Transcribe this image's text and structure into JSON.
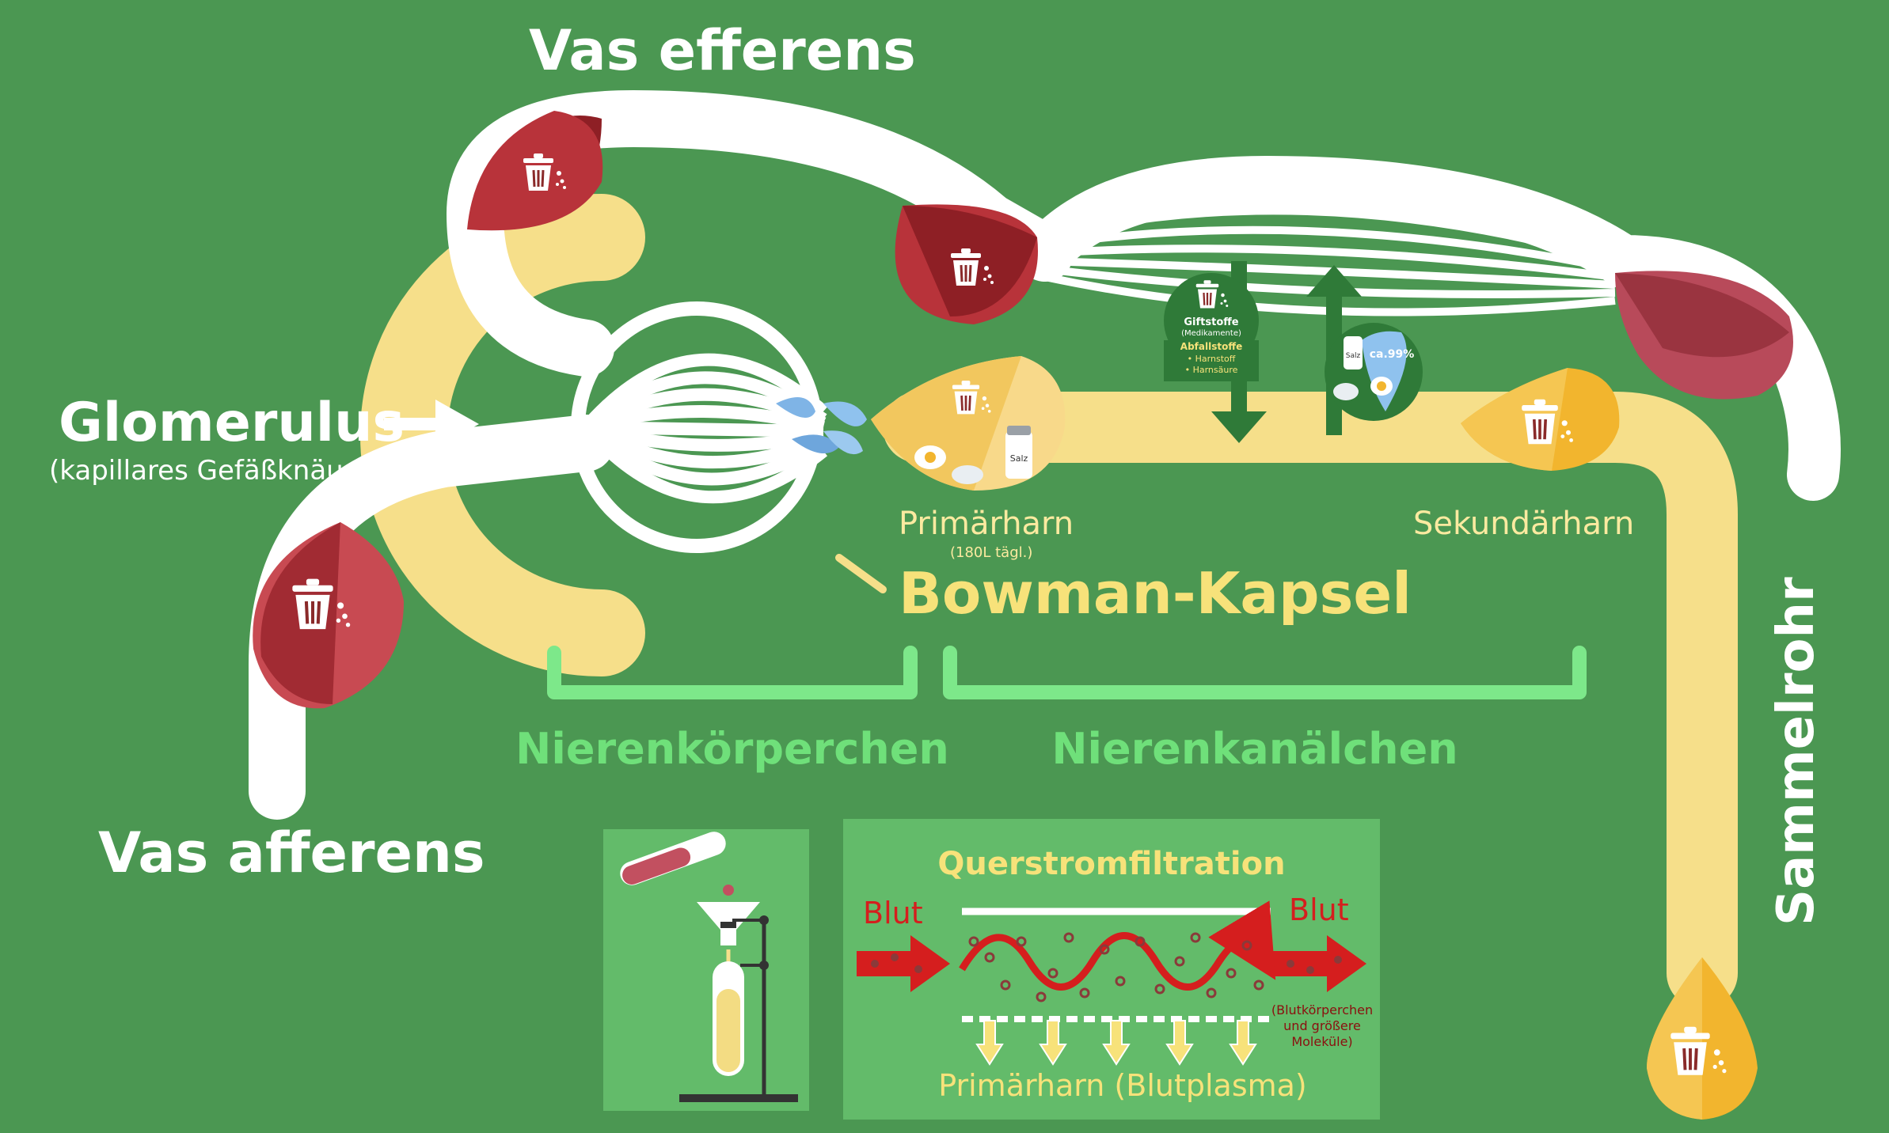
{
  "labels": {
    "vas_efferens": "Vas efferens",
    "glomerulus": "Glomerulus",
    "glomerulus_sub": "(kapillares Gefäßknäuel)",
    "vas_afferens": "Vas afferens",
    "primaerharn": "Primärharn",
    "primaerharn_sub": "(180L tägl.)",
    "bowman": "Bowman-Kapsel",
    "sekundaerharn": "Sekundärharn",
    "sammelrohr": "Sammelrohr",
    "nierenkoerperchen": "Nierenkörperchen",
    "nierenkanaelchen": "Nierenkanälchen"
  },
  "toxins_badge": {
    "title": "Giftstoffe",
    "subtitle": "(Medikamente)",
    "waste_title": "Abfallstoffe",
    "waste_items": [
      "• Harnstoff",
      "• Harnsäure"
    ]
  },
  "reabsorb_badge": {
    "percent": "ca.99%",
    "salt": "Salz"
  },
  "primaer_drop": {
    "salt": "Salz"
  },
  "filtration_panel": {
    "title": "Querstromfiltration",
    "blood_left": "Blut",
    "blood_right": "Blut",
    "note_lines": [
      "(Blutkörperchen",
      "und größere",
      "Moleküle)"
    ],
    "bottom_label": "Primärharn (Blutplasma)"
  },
  "colors": {
    "background": "#4b9752",
    "vessel": "#ffffff",
    "tubule": "#f6df8a",
    "blood_drop": "#b8333a",
    "urine_drop": "#f2b52e",
    "bracket": "#7de88a",
    "panel": "#63bb6a",
    "accent_red": "#d51e1e"
  },
  "icons": [
    "trash-can-icon",
    "salt-shaker-icon",
    "egg-icon",
    "pill-icon",
    "arrow-right-icon",
    "arrow-up-icon",
    "arrow-down-icon",
    "funnel-icon",
    "test-tube-icon"
  ]
}
